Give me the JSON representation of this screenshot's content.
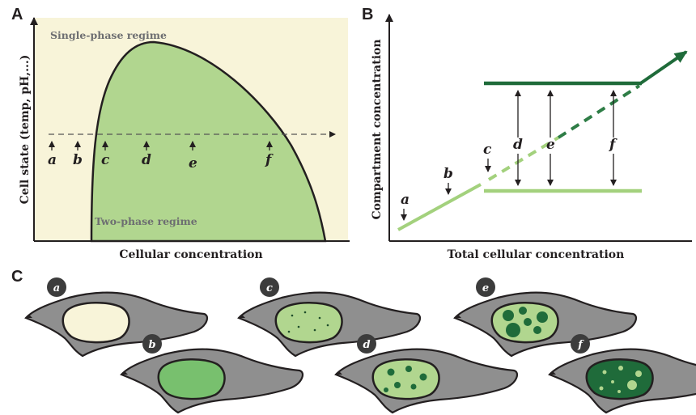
{
  "panels": {
    "A": {
      "letter": "A",
      "x_axis_label": "Cellular concentration",
      "y_axis_label": "Cell state (temp, pH,...)",
      "single_phase_label": "Single-phase regime",
      "two_phase_label": "Two-phase regime",
      "points": [
        "a",
        "b",
        "c",
        "d",
        "e",
        "f"
      ]
    },
    "B": {
      "letter": "B",
      "x_axis_label": "Total cellular concentration",
      "y_axis_label": "Compartment concentration",
      "points": [
        "a",
        "b",
        "c",
        "d",
        "e",
        "f"
      ]
    },
    "C": {
      "letter": "C",
      "cells": [
        "a",
        "b",
        "c",
        "d",
        "e",
        "f"
      ]
    }
  },
  "colors": {
    "single_phase_bg": "#f8f4d9",
    "two_phase_fill": "#b1d68f",
    "dilute_line": "#a3d17d",
    "dense_line": "#1f6b3a",
    "cell_body": "#8f8f8f",
    "dark_badge": "#3c3c3c"
  }
}
